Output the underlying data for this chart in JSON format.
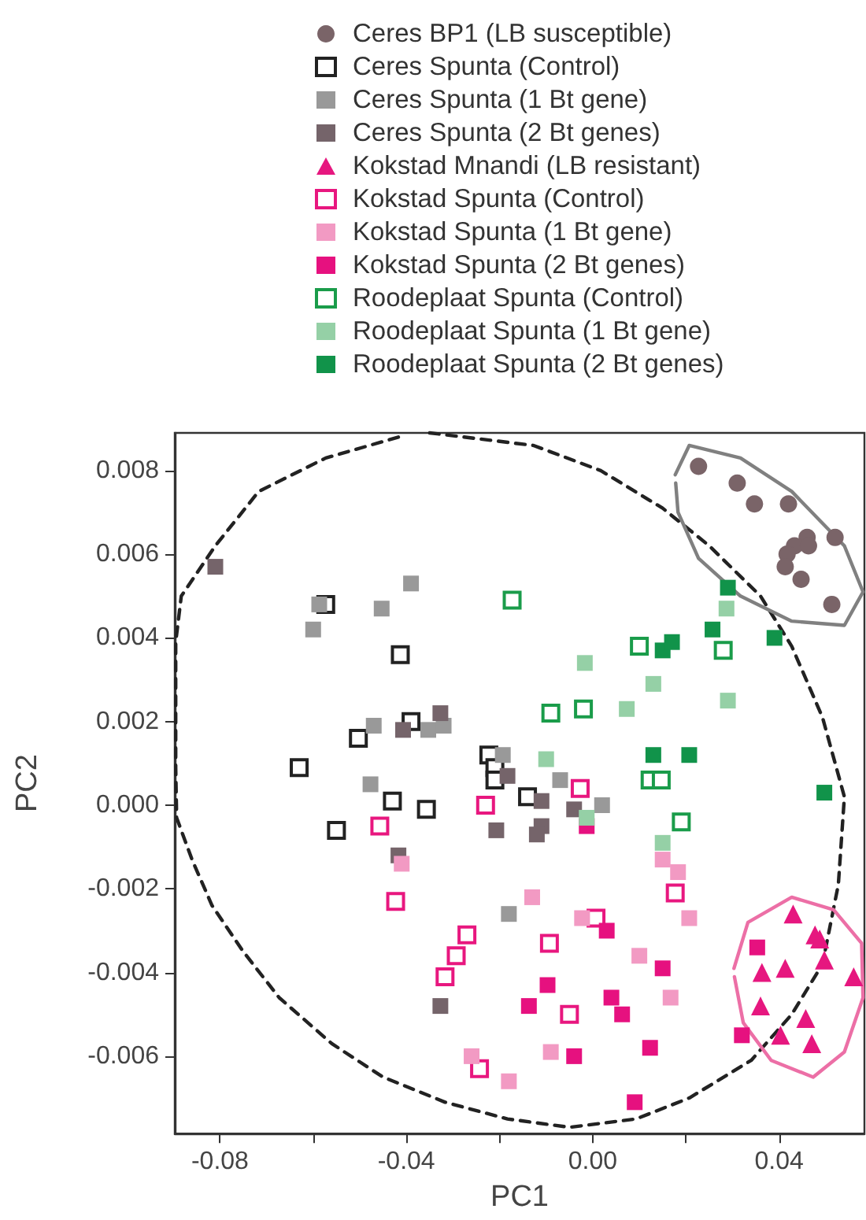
{
  "chart_data": {
    "type": "scatter",
    "xlabel": "PC1",
    "ylabel": "PC2",
    "legend": "top",
    "grid": false,
    "xlim": [
      -0.0897,
      0.0583
    ],
    "ylim": [
      -0.00785,
      0.0089
    ],
    "xticks": [
      {
        "value": -0.08,
        "label": "-0.08"
      },
      {
        "value": -0.06,
        "label": null
      },
      {
        "value": -0.04,
        "label": "-0.04"
      },
      {
        "value": -0.02,
        "label": null
      },
      {
        "value": 0,
        "label": "0.00"
      },
      {
        "value": 0.02,
        "label": null
      },
      {
        "value": 0.04,
        "label": "0.04"
      }
    ],
    "yticks": [
      {
        "value": -0.006,
        "label": "-0.006"
      },
      {
        "value": -0.004,
        "label": "-0.004"
      },
      {
        "value": -0.002,
        "label": "-0.002"
      },
      {
        "value": 0,
        "label": "0.000"
      },
      {
        "value": 0.002,
        "label": "0.002"
      },
      {
        "value": 0.004,
        "label": "0.004"
      },
      {
        "value": 0.006,
        "label": "0.006"
      },
      {
        "value": 0.008,
        "label": "0.008"
      }
    ],
    "series": [
      {
        "name": "Ceres BP1 (LB susceptible)",
        "color": "#7a6468",
        "marker": "circle",
        "x": [
          0.0227,
          0.031,
          0.0347,
          0.042,
          0.046,
          0.052,
          0.0433,
          0.0463,
          0.0417,
          0.0413,
          0.0447,
          0.0513
        ],
        "values": [
          0.0081,
          0.0077,
          0.0072,
          0.0072,
          0.0064,
          0.0064,
          0.0062,
          0.0062,
          0.006,
          0.0057,
          0.0054,
          0.0048
        ]
      },
      {
        "name": "Ceres Spunta (Control)",
        "color": "#222222",
        "marker": "square-open",
        "x": [
          -0.0573,
          -0.0413,
          -0.0503,
          -0.063,
          -0.039,
          -0.043,
          -0.0357,
          -0.055,
          -0.0223,
          -0.021,
          -0.021,
          -0.014
        ],
        "values": [
          0.0048,
          0.0036,
          0.0016,
          0.0009,
          0.002,
          0.0001,
          -0.0001,
          -0.0006,
          0.0012,
          0.0009,
          0.0006,
          0.0002
        ]
      },
      {
        "name": "Ceres Spunta (1 Bt gene)",
        "color": "#999999",
        "marker": "square",
        "x": [
          -0.0587,
          -0.06,
          -0.0453,
          -0.039,
          -0.047,
          -0.0353,
          -0.032,
          -0.0477,
          -0.0193,
          -0.007,
          0.002,
          -0.018
        ],
        "values": [
          0.0048,
          0.0042,
          0.0047,
          0.0053,
          0.0019,
          0.0018,
          0.0019,
          0.0005,
          0.0012,
          0.0006,
          0.0,
          -0.0026
        ]
      },
      {
        "name": "Ceres Spunta (2 Bt genes)",
        "color": "#75646a",
        "marker": "square",
        "x": [
          -0.081,
          -0.0407,
          -0.0327,
          -0.0183,
          -0.011,
          -0.004,
          -0.0207,
          -0.011,
          -0.012,
          -0.0327,
          -0.0417
        ],
        "values": [
          0.0057,
          0.0018,
          0.0022,
          0.0007,
          0.0001,
          -0.0001,
          -0.0006,
          -0.0005,
          -0.0007,
          -0.0048,
          -0.0012
        ]
      },
      {
        "name": "Kokstad Mnandi (LB resistant)",
        "color": "#e6177f",
        "marker": "triangle",
        "x": [
          0.043,
          0.0477,
          0.0487,
          0.0497,
          0.0363,
          0.0413,
          0.056,
          0.036,
          0.0457,
          0.0403,
          0.047
        ],
        "values": [
          -0.0026,
          -0.0031,
          -0.0032,
          -0.0037,
          -0.004,
          -0.0039,
          -0.0041,
          -0.0048,
          -0.0051,
          -0.0055,
          -0.0057
        ]
      },
      {
        "name": "Kokstad Spunta (Control)",
        "color": "#e8177f",
        "marker": "square-open",
        "x": [
          -0.0457,
          -0.0423,
          -0.0317,
          -0.0293,
          -0.027,
          -0.0243,
          -0.0093,
          0.0007,
          -0.005,
          0.0177,
          -0.0027,
          -0.023
        ],
        "values": [
          -0.0005,
          -0.0023,
          -0.0041,
          -0.0036,
          -0.0031,
          -0.0063,
          -0.0033,
          -0.0027,
          -0.005,
          -0.0021,
          0.0004,
          0.0
        ]
      },
      {
        "name": "Kokstad Spunta (1 Bt gene)",
        "color": "#f29ac3",
        "marker": "square",
        "x": [
          -0.041,
          -0.013,
          -0.0023,
          0.01,
          0.015,
          0.0183,
          0.0207,
          0.0167,
          -0.026,
          -0.018,
          -0.009
        ],
        "values": [
          -0.0014,
          -0.0022,
          -0.0027,
          -0.0036,
          -0.0013,
          -0.0016,
          -0.0027,
          -0.0046,
          -0.006,
          -0.0066,
          -0.0059
        ]
      },
      {
        "name": "Kokstad Spunta (2 Bt genes)",
        "color": "#e6117f",
        "marker": "square",
        "x": [
          -0.0013,
          0.003,
          0.015,
          -0.0097,
          -0.0137,
          0.004,
          0.0063,
          -0.004,
          0.0123,
          0.009,
          0.0353,
          0.032
        ],
        "values": [
          -0.0005,
          -0.003,
          -0.0039,
          -0.0043,
          -0.0048,
          -0.0046,
          -0.005,
          -0.006,
          -0.0058,
          -0.0071,
          -0.0034,
          -0.0055
        ]
      },
      {
        "name": "Roodeplaat Spunta (Control)",
        "color": "#1a9c4a",
        "marker": "square-open",
        "x": [
          -0.0173,
          0.01,
          0.028,
          -0.009,
          -0.002,
          0.0123,
          0.0147,
          0.019
        ],
        "values": [
          0.0049,
          0.0038,
          0.0037,
          0.0022,
          0.0023,
          0.0006,
          0.0006,
          -0.0004
        ]
      },
      {
        "name": "Roodeplaat Spunta (1 Bt gene)",
        "color": "#95d0a6",
        "marker": "square",
        "x": [
          0.0287,
          -0.0017,
          0.013,
          0.0073,
          0.029,
          -0.01,
          -0.0013,
          0.015
        ],
        "values": [
          0.0047,
          0.0034,
          0.0029,
          0.0023,
          0.0025,
          0.0011,
          -0.0003,
          -0.0009
        ]
      },
      {
        "name": "Roodeplaat Spunta (2 Bt genes)",
        "color": "#11934a",
        "marker": "square",
        "x": [
          0.029,
          0.0257,
          0.015,
          0.017,
          0.039,
          0.013,
          0.0207,
          0.0497
        ],
        "values": [
          0.0052,
          0.0042,
          0.0037,
          0.0039,
          0.004,
          0.0012,
          0.0012,
          0.0003
        ]
      },
      {
        "type": "line",
        "color": "#222222",
        "line_style": "dashed",
        "marker": "none",
        "x": [
          -0.035,
          -0.0127,
          0.0017,
          0.015,
          0.025,
          0.036,
          0.0427,
          0.0493,
          0.054,
          0.0527,
          0.0493,
          0.0427,
          0.034,
          0.0207,
          0.0093,
          -0.005,
          -0.0183,
          -0.0317,
          -0.045,
          -0.056,
          -0.0673,
          -0.075,
          -0.0817,
          -0.086,
          -0.0893,
          -0.0895,
          -0.0895,
          -0.0895,
          -0.0883,
          -0.081,
          -0.0717,
          -0.0573,
          -0.0417
        ],
        "values": [
          0.0089,
          0.0086,
          0.008,
          0.0071,
          0.0062,
          0.005,
          0.0038,
          0.0021,
          0.0002,
          -0.0019,
          -0.0038,
          -0.005,
          -0.0061,
          -0.007,
          -0.0075,
          -0.0077,
          -0.0075,
          -0.0071,
          -0.0065,
          -0.0057,
          -0.0046,
          -0.0035,
          -0.0024,
          -0.0013,
          -0.0003,
          0.0009,
          0.0024,
          0.0039,
          0.005,
          0.0062,
          0.0075,
          0.0083,
          0.0088
        ]
      },
      {
        "type": "line",
        "color": "#808080",
        "line_style": "solid",
        "marker": "none",
        "x": [
          0.0177,
          0.0207,
          0.0317,
          0.0427,
          0.054,
          0.058,
          0.054,
          0.0427,
          0.0317,
          0.0227,
          0.0183,
          0.0178
        ],
        "values": [
          0.0079,
          0.0086,
          0.0083,
          0.0075,
          0.0062,
          0.0051,
          0.0043,
          0.0044,
          0.005,
          0.0059,
          0.007,
          0.0077
        ]
      },
      {
        "type": "line",
        "color": "#ec6fa6",
        "line_style": "solid",
        "marker": "none",
        "x": [
          0.0303,
          0.0333,
          0.0427,
          0.0517,
          0.0577,
          0.058,
          0.054,
          0.0473,
          0.0383,
          0.0323,
          0.0304
        ],
        "values": [
          -0.0039,
          -0.0028,
          -0.0022,
          -0.0025,
          -0.0033,
          -0.0046,
          -0.0059,
          -0.0065,
          -0.0061,
          -0.0052,
          -0.0041
        ]
      }
    ]
  }
}
